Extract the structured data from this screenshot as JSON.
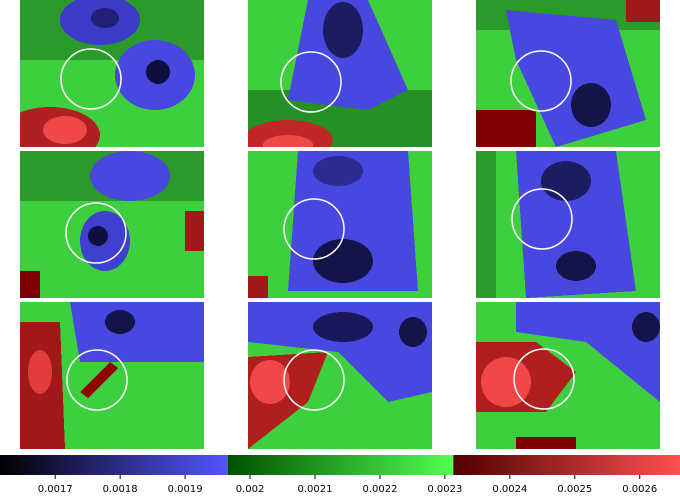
{
  "chart_data": {
    "type": "colorbar",
    "xlim": [
      0.001615,
      0.002662
    ],
    "xticks": [
      0.0017,
      0.0018,
      0.0019,
      0.002,
      0.0021,
      0.0022,
      0.0023,
      0.0024,
      0.0025,
      0.0026
    ],
    "segments": [
      {
        "range": [
          0.001615,
          0.001966
        ],
        "colors": [
          "#000000",
          "#5454ff"
        ]
      },
      {
        "range": [
          0.001966,
          0.002313
        ],
        "colors": [
          "#005000",
          "#50ff50"
        ]
      },
      {
        "range": [
          0.002313,
          0.002662
        ],
        "colors": [
          "#500000",
          "#ff5050"
        ]
      }
    ]
  }
}
